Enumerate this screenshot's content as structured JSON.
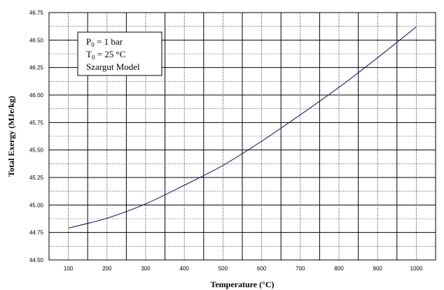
{
  "chart_data": {
    "type": "line",
    "title": "",
    "xlabel": "Temperature (°C)",
    "ylabel": "Total  Exergy (MJe/kg)",
    "xlim": [
      50,
      1050
    ],
    "ylim": [
      44.5,
      46.75
    ],
    "x_ticks": [
      "100",
      "200",
      "300",
      "400",
      "500",
      "600",
      "700",
      "800",
      "900",
      "1000"
    ],
    "y_ticks": [
      "44.50",
      "44.75",
      "45.00",
      "45.25",
      "45.50",
      "45.75",
      "46.00",
      "46.25",
      "46.50",
      "46.75"
    ],
    "grid": true,
    "series": [
      {
        "name": "",
        "color": "#1a1a80",
        "x": [
          100,
          200,
          300,
          400,
          500,
          600,
          700,
          800,
          900,
          1000
        ],
        "y": [
          44.79,
          44.88,
          45.01,
          45.18,
          45.36,
          45.58,
          45.82,
          46.07,
          46.34,
          46.62
        ]
      }
    ],
    "legend": {
      "placement": "top-left",
      "lines": [
        {
          "base": "P",
          "sub": "0",
          "rest": " = 1 bar"
        },
        {
          "base": "T",
          "sub": "0",
          "rest": " = 25 °C"
        },
        {
          "base": "Szargut Model",
          "sub": "",
          "rest": ""
        }
      ]
    }
  }
}
